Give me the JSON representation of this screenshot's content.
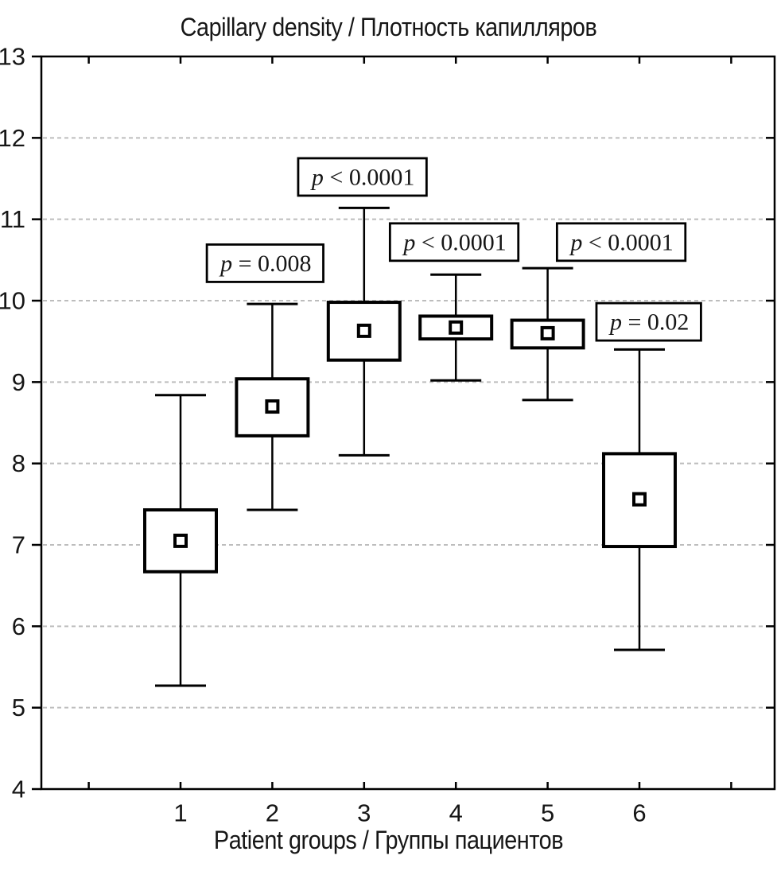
{
  "figure": {
    "title": "Capillary density / Плотность капилляров",
    "xlabel": "Patient groups / Группы пациентов"
  },
  "chart_data": {
    "type": "boxplot",
    "title": "Capillary density / Плотность капилляров",
    "xlabel": "Patient groups / Группы пациентов",
    "ylabel": "",
    "ylim": [
      4,
      13
    ],
    "yticks": [
      4,
      5,
      6,
      7,
      8,
      9,
      10,
      11,
      12,
      13
    ],
    "gridlines_y": [
      5,
      6,
      7,
      8,
      9,
      10,
      11,
      12
    ],
    "grid_style": "horizontal-dashed",
    "x_minor_tick_positions": [
      0,
      1,
      2,
      3,
      4,
      5,
      6,
      7
    ],
    "categories": [
      "1",
      "2",
      "3",
      "4",
      "5",
      "6"
    ],
    "mean_marker": "open-square",
    "legend": null,
    "series": [
      {
        "label": "1",
        "whisker_low": 5.27,
        "box_low": 6.67,
        "mean": 7.05,
        "box_high": 7.43,
        "whisker_high": 8.84,
        "p_label": null
      },
      {
        "label": "2",
        "whisker_low": 7.43,
        "box_low": 8.34,
        "mean": 8.7,
        "box_high": 9.04,
        "whisker_high": 9.96,
        "p_label": "p = 0.008"
      },
      {
        "label": "3",
        "whisker_low": 8.1,
        "box_low": 9.27,
        "mean": 9.63,
        "box_high": 9.98,
        "whisker_high": 11.14,
        "p_label": "p < 0.0001"
      },
      {
        "label": "4",
        "whisker_low": 9.02,
        "box_low": 9.53,
        "mean": 9.67,
        "box_high": 9.81,
        "whisker_high": 10.32,
        "p_label": "p < 0.0001"
      },
      {
        "label": "5",
        "whisker_low": 8.78,
        "box_low": 9.42,
        "mean": 9.6,
        "box_high": 9.76,
        "whisker_high": 10.4,
        "p_label": "p < 0.0001"
      },
      {
        "label": "6",
        "whisker_low": 5.71,
        "box_low": 6.98,
        "mean": 7.56,
        "box_high": 8.12,
        "whisker_high": 9.4,
        "p_label": "p = 0.02"
      }
    ],
    "annotations": [
      {
        "text": "p = 0.008",
        "x": 1.93,
        "y": 10.46
      },
      {
        "text": "p < 0.0001",
        "x": 2.99,
        "y": 11.52
      },
      {
        "text": "p < 0.0001",
        "x": 3.99,
        "y": 10.72
      },
      {
        "text": "p < 0.0001",
        "x": 5.81,
        "y": 10.72
      },
      {
        "text": "p = 0.02",
        "x": 6.11,
        "y": 9.74
      }
    ]
  },
  "colors": {
    "stroke": "#000000",
    "background": "#ffffff",
    "grid": "#bdbdbd",
    "text": "#161616"
  }
}
